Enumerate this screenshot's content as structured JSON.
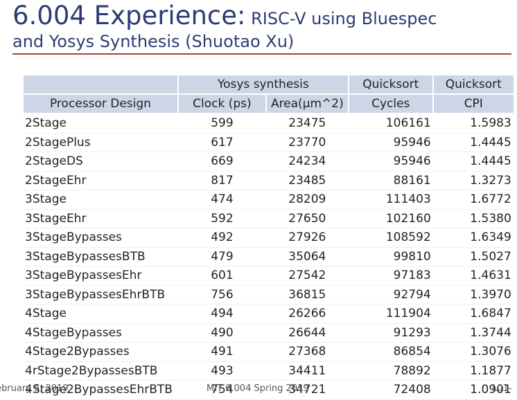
{
  "slide": {
    "title_main": "6.004 Experience:",
    "title_rest": " RISC-V using Bluespec",
    "title_line2": "and Yosys Synthesis (Shuotao Xu)"
  },
  "table": {
    "group_headers": [
      "",
      "Yosys synthesis",
      "Quicksort",
      "Quicksort"
    ],
    "columns": [
      "Processor Design",
      "Clock (ps)",
      "Area(µm^2)",
      "Cycles",
      "CPI"
    ],
    "rows": [
      [
        "2Stage",
        "599",
        "23475",
        "106161",
        "1.5983"
      ],
      [
        "2StagePlus",
        "617",
        "23770",
        "95946",
        "1.4445"
      ],
      [
        "2StageDS",
        "669",
        "24234",
        "95946",
        "1.4445"
      ],
      [
        "2StageEhr",
        "817",
        "23485",
        "88161",
        "1.3273"
      ],
      [
        "3Stage",
        "474",
        "28209",
        "111403",
        "1.6772"
      ],
      [
        "3StageEhr",
        "592",
        "27650",
        "102160",
        "1.5380"
      ],
      [
        "3StageBypasses",
        "492",
        "27926",
        "108592",
        "1.6349"
      ],
      [
        "3StageBypassesBTB",
        "479",
        "35064",
        "99810",
        "1.5027"
      ],
      [
        "3StageBypassesEhr",
        "601",
        "27542",
        "97183",
        "1.4631"
      ],
      [
        "3StageBypassesEhrBTB",
        "756",
        "36815",
        "92794",
        "1.3970"
      ],
      [
        "4Stage",
        "494",
        "26266",
        "111904",
        "1.6847"
      ],
      [
        "4StageBypasses",
        "490",
        "26644",
        "91293",
        "1.3744"
      ],
      [
        "4Stage2Bypasses",
        "491",
        "27368",
        "86854",
        "1.3076"
      ],
      [
        "4rStage2BypassesBTB",
        "493",
        "34411",
        "78892",
        "1.1877"
      ],
      [
        "4Stage2BypassesEhrBTB",
        "754",
        "34721",
        "72408",
        "1.0901"
      ]
    ]
  },
  "footer": {
    "date": "ebruary 5, 2019",
    "course": "MIT 6.004 Spring 2019",
    "page": "L01-"
  },
  "colors": {
    "title": "#2e3b73",
    "rule": "#a6403a",
    "header_fill": "#cdd6e7"
  }
}
